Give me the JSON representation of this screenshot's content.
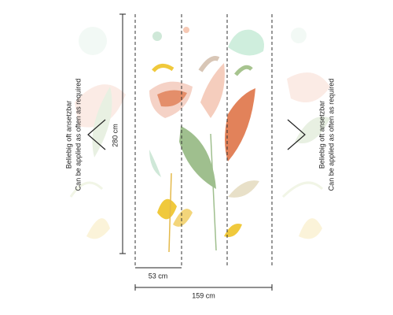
{
  "note": {
    "line1": "Beliebig oft ansetzbar",
    "line2": "Can be applied as often as required"
  },
  "dimensions": {
    "height": "280 cm",
    "panel_width": "53 cm",
    "total_width": "159 cm"
  }
}
